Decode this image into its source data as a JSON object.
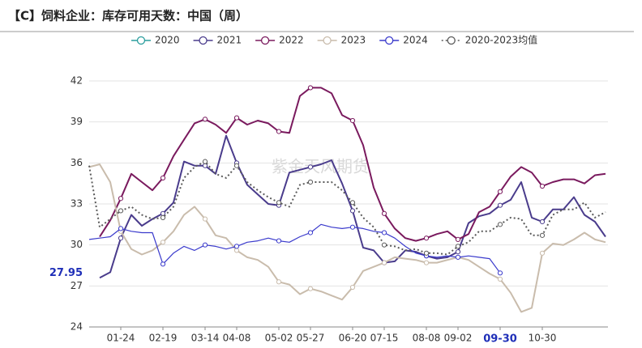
{
  "chart_data": {
    "type": "line",
    "title": "【C】饲料企业：库存可用天数：中国（周）",
    "watermark": "紫金天风期货",
    "categories": [
      null,
      null,
      null,
      "01-24",
      null,
      null,
      null,
      "02-19",
      null,
      null,
      null,
      "03-14",
      null,
      null,
      "04-08",
      null,
      null,
      null,
      "05-02",
      null,
      null,
      "05-27",
      null,
      null,
      null,
      "06-20",
      null,
      null,
      "07-15",
      null,
      null,
      null,
      "08-08",
      null,
      null,
      "09-02",
      null,
      null,
      null,
      "09-30",
      null,
      null,
      null,
      "10-30",
      null,
      null,
      null,
      null,
      null,
      null
    ],
    "ylim": [
      24,
      42
    ],
    "yticks": [
      24,
      27,
      30,
      33,
      36,
      39,
      42
    ],
    "grid": true,
    "crosshair": {
      "series": "2024",
      "y": 27.95
    },
    "series": [
      {
        "name": "2020",
        "color": "#2a9d9d",
        "style": "solid",
        "values": [
          null,
          null,
          null,
          null,
          null,
          null,
          null,
          null,
          null,
          null,
          null,
          null,
          null,
          null,
          null,
          null,
          null,
          null,
          null,
          null,
          null,
          null,
          null,
          null,
          null,
          null,
          null,
          null,
          null,
          null,
          null,
          null,
          null,
          null,
          null,
          null,
          null,
          null,
          null,
          null,
          null,
          null,
          null,
          null,
          null,
          null,
          null,
          null,
          null,
          null
        ]
      },
      {
        "name": "2021",
        "color": "#4a3c8c",
        "style": "solid",
        "values": [
          null,
          27.6,
          28.0,
          30.5,
          32.2,
          31.4,
          31.9,
          32.3,
          33.1,
          36.1,
          35.8,
          35.8,
          35.2,
          38.0,
          36.0,
          34.4,
          33.7,
          33.0,
          32.9,
          35.3,
          35.5,
          35.7,
          35.9,
          36.2,
          34.5,
          32.5,
          29.8,
          29.6,
          28.7,
          28.8,
          29.6,
          29.5,
          29.2,
          29.0,
          29.1,
          29.5,
          31.6,
          32.1,
          32.3,
          32.9,
          33.3,
          34.6,
          32.0,
          31.7,
          32.6,
          32.6,
          33.5,
          32.2,
          31.7,
          30.6
        ]
      },
      {
        "name": "2022",
        "color": "#7a1a5e",
        "style": "solid",
        "values": [
          null,
          30.6,
          31.8,
          33.4,
          35.2,
          34.6,
          34.0,
          34.9,
          36.5,
          37.7,
          38.9,
          39.2,
          38.8,
          38.2,
          39.3,
          38.8,
          39.1,
          38.9,
          38.3,
          38.2,
          40.9,
          41.5,
          41.5,
          41.1,
          39.5,
          39.1,
          37.3,
          34.2,
          32.3,
          31.2,
          30.5,
          30.3,
          30.5,
          30.8,
          31.0,
          30.4,
          30.8,
          32.4,
          32.8,
          33.9,
          35.0,
          35.7,
          35.3,
          34.3,
          34.6,
          34.8,
          34.8,
          34.5,
          35.1,
          35.2
        ]
      },
      {
        "name": "2023",
        "color": "#c9bcac",
        "style": "solid",
        "values": [
          35.7,
          35.9,
          34.6,
          31.0,
          29.7,
          29.3,
          29.6,
          30.2,
          31.0,
          32.2,
          32.8,
          31.9,
          30.7,
          30.5,
          29.6,
          29.1,
          28.9,
          28.4,
          27.3,
          27.1,
          26.4,
          26.8,
          26.6,
          26.3,
          26.0,
          26.9,
          28.1,
          28.4,
          28.7,
          29.1,
          29.0,
          28.9,
          28.7,
          28.7,
          28.9,
          29.1,
          28.9,
          28.4,
          27.9,
          27.5,
          26.5,
          25.1,
          25.4,
          29.4,
          30.1,
          30.0,
          30.4,
          30.9,
          30.4,
          30.2
        ]
      },
      {
        "name": "2024",
        "color": "#3a3acc",
        "style": "thin",
        "values": [
          30.4,
          30.5,
          30.6,
          31.2,
          31.0,
          30.9,
          30.9,
          28.6,
          29.4,
          29.9,
          29.6,
          30.0,
          29.9,
          29.7,
          29.9,
          30.2,
          30.3,
          30.5,
          30.3,
          30.2,
          30.6,
          30.9,
          31.5,
          31.3,
          31.2,
          31.3,
          31.2,
          31.0,
          30.9,
          30.5,
          29.9,
          29.4,
          29.2,
          29.1,
          29.2,
          29.1,
          29.2,
          29.1,
          29.0,
          27.95,
          null,
          null,
          null,
          null,
          null,
          null,
          null,
          null,
          null,
          null
        ]
      },
      {
        "name": "2020-2023均值",
        "color": "#5a5a5a",
        "style": "dotted",
        "values": [
          35.8,
          31.3,
          31.9,
          32.5,
          32.8,
          32.2,
          31.9,
          32.0,
          32.8,
          34.9,
          35.7,
          36.1,
          35.2,
          34.9,
          35.8,
          34.6,
          34.0,
          33.5,
          33.1,
          32.8,
          34.4,
          34.6,
          34.6,
          34.6,
          34.0,
          33.1,
          32.0,
          31.3,
          30.0,
          29.9,
          29.6,
          29.7,
          29.4,
          29.4,
          29.3,
          29.9,
          30.2,
          31.0,
          31.0,
          31.5,
          32.0,
          31.9,
          30.7,
          30.7,
          32.2,
          32.6,
          32.6,
          33.1,
          32.0,
          32.4
        ]
      }
    ]
  }
}
